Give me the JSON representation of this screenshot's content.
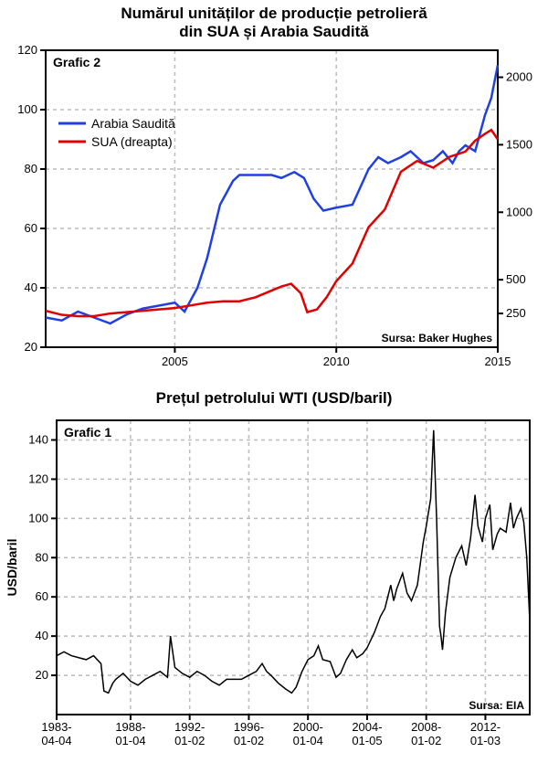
{
  "chart_top": {
    "type": "line",
    "title_line1": "Numărul unităților de producție petrolieră",
    "title_line2": "din SUA și Arabia Saudită",
    "title_fontsize": 17,
    "box_label": "Grafic 2",
    "legend": {
      "series1": {
        "label": "Arabia Saudită",
        "color": "#2040e0"
      },
      "series2": {
        "label": "SUA (dreapta)",
        "color": "#e00000"
      }
    },
    "source_label": "Sursa: Baker Hughes",
    "background_color": "#ffffff",
    "axis_color": "#000000",
    "grid_color": "#bbbbbb",
    "x": {
      "min": 2001,
      "max": 2015,
      "ticks": [
        2005,
        2010,
        2015
      ]
    },
    "y_left": {
      "min": 20,
      "max": 120,
      "ticks": [
        20,
        40,
        60,
        80,
        100,
        120
      ]
    },
    "y_right": {
      "min": 0,
      "max": 2200,
      "ticks": [
        250,
        500,
        1000,
        1500,
        2000
      ]
    },
    "line_width": 2.5,
    "series1_data": [
      [
        2001.0,
        30
      ],
      [
        2001.5,
        29
      ],
      [
        2002.0,
        32
      ],
      [
        2002.5,
        30
      ],
      [
        2003.0,
        28
      ],
      [
        2003.5,
        31
      ],
      [
        2004.0,
        33
      ],
      [
        2004.5,
        34
      ],
      [
        2005.0,
        35
      ],
      [
        2005.3,
        32
      ],
      [
        2005.7,
        40
      ],
      [
        2006.0,
        50
      ],
      [
        2006.4,
        68
      ],
      [
        2006.8,
        76
      ],
      [
        2007.0,
        78
      ],
      [
        2007.5,
        78
      ],
      [
        2008.0,
        78
      ],
      [
        2008.3,
        77
      ],
      [
        2008.7,
        79
      ],
      [
        2009.0,
        77
      ],
      [
        2009.3,
        70
      ],
      [
        2009.6,
        66
      ],
      [
        2010.0,
        67
      ],
      [
        2010.5,
        68
      ],
      [
        2011.0,
        80
      ],
      [
        2011.3,
        84
      ],
      [
        2011.6,
        82
      ],
      [
        2012.0,
        84
      ],
      [
        2012.3,
        86
      ],
      [
        2012.7,
        82
      ],
      [
        2013.0,
        83
      ],
      [
        2013.3,
        86
      ],
      [
        2013.6,
        82
      ],
      [
        2013.8,
        86
      ],
      [
        2014.0,
        88
      ],
      [
        2014.3,
        86
      ],
      [
        2014.6,
        98
      ],
      [
        2014.8,
        104
      ],
      [
        2015.0,
        115
      ]
    ],
    "series2_data": [
      [
        2001.0,
        270
      ],
      [
        2001.5,
        240
      ],
      [
        2002.0,
        230
      ],
      [
        2002.5,
        230
      ],
      [
        2003.0,
        250
      ],
      [
        2003.5,
        260
      ],
      [
        2004.0,
        270
      ],
      [
        2004.5,
        280
      ],
      [
        2005.0,
        290
      ],
      [
        2005.5,
        310
      ],
      [
        2006.0,
        330
      ],
      [
        2006.5,
        340
      ],
      [
        2007.0,
        340
      ],
      [
        2007.5,
        370
      ],
      [
        2008.0,
        420
      ],
      [
        2008.3,
        450
      ],
      [
        2008.6,
        470
      ],
      [
        2008.9,
        400
      ],
      [
        2009.1,
        260
      ],
      [
        2009.4,
        280
      ],
      [
        2009.7,
        370
      ],
      [
        2010.0,
        490
      ],
      [
        2010.5,
        620
      ],
      [
        2011.0,
        890
      ],
      [
        2011.5,
        1020
      ],
      [
        2012.0,
        1300
      ],
      [
        2012.5,
        1380
      ],
      [
        2013.0,
        1330
      ],
      [
        2013.5,
        1410
      ],
      [
        2014.0,
        1450
      ],
      [
        2014.3,
        1530
      ],
      [
        2014.6,
        1580
      ],
      [
        2014.8,
        1610
      ],
      [
        2015.0,
        1540
      ]
    ]
  },
  "chart_bottom": {
    "type": "line",
    "title": "Prețul petrolului WTI (USD/baril)",
    "title_fontsize": 17,
    "box_label": "Grafic 1",
    "ylabel": "USD/baril",
    "source_label": "Sursa: EIA",
    "background_color": "#ffffff",
    "axis_color": "#000000",
    "grid_color": "#bbbbbb",
    "line_color": "#000000",
    "line_width": 1.5,
    "x": {
      "min": 1983,
      "max": 2015,
      "ticks": [
        {
          "val": 1983,
          "lab1": "1983-",
          "lab2": "04-04"
        },
        {
          "val": 1988,
          "lab1": "1988-",
          "lab2": "01-04"
        },
        {
          "val": 1992,
          "lab1": "1992-",
          "lab2": "01-02"
        },
        {
          "val": 1996,
          "lab1": "1996-",
          "lab2": "01-02"
        },
        {
          "val": 2000,
          "lab1": "2000-",
          "lab2": "01-04"
        },
        {
          "val": 2004,
          "lab1": "2004-",
          "lab2": "01-05"
        },
        {
          "val": 2008,
          "lab1": "2008-",
          "lab2": "01-02"
        },
        {
          "val": 2012,
          "lab1": "2012-",
          "lab2": "01-03"
        }
      ]
    },
    "y": {
      "min": 0,
      "max": 150,
      "ticks": [
        20,
        40,
        60,
        80,
        100,
        120,
        140
      ]
    },
    "series_data": [
      [
        1983.0,
        30
      ],
      [
        1983.5,
        32
      ],
      [
        1984.0,
        30
      ],
      [
        1984.5,
        29
      ],
      [
        1985.0,
        28
      ],
      [
        1985.5,
        30
      ],
      [
        1986.0,
        26
      ],
      [
        1986.2,
        12
      ],
      [
        1986.5,
        11
      ],
      [
        1986.8,
        16
      ],
      [
        1987.0,
        18
      ],
      [
        1987.5,
        21
      ],
      [
        1988.0,
        17
      ],
      [
        1988.5,
        15
      ],
      [
        1989.0,
        18
      ],
      [
        1989.5,
        20
      ],
      [
        1990.0,
        22
      ],
      [
        1990.5,
        19
      ],
      [
        1990.7,
        40
      ],
      [
        1991.0,
        24
      ],
      [
        1991.5,
        21
      ],
      [
        1992.0,
        19
      ],
      [
        1992.5,
        22
      ],
      [
        1993.0,
        20
      ],
      [
        1993.5,
        17
      ],
      [
        1994.0,
        15
      ],
      [
        1994.5,
        18
      ],
      [
        1995.0,
        18
      ],
      [
        1995.5,
        18
      ],
      [
        1996.0,
        20
      ],
      [
        1996.5,
        22
      ],
      [
        1996.9,
        26
      ],
      [
        1997.2,
        22
      ],
      [
        1997.5,
        20
      ],
      [
        1998.0,
        16
      ],
      [
        1998.5,
        13
      ],
      [
        1998.9,
        11
      ],
      [
        1999.2,
        14
      ],
      [
        1999.6,
        22
      ],
      [
        2000.0,
        28
      ],
      [
        2000.4,
        30
      ],
      [
        2000.7,
        35
      ],
      [
        2001.0,
        28
      ],
      [
        2001.5,
        27
      ],
      [
        2001.9,
        19
      ],
      [
        2002.2,
        21
      ],
      [
        2002.6,
        28
      ],
      [
        2003.0,
        33
      ],
      [
        2003.3,
        29
      ],
      [
        2003.7,
        31
      ],
      [
        2004.0,
        34
      ],
      [
        2004.5,
        42
      ],
      [
        2004.9,
        50
      ],
      [
        2005.2,
        54
      ],
      [
        2005.6,
        66
      ],
      [
        2005.8,
        58
      ],
      [
        2006.0,
        64
      ],
      [
        2006.4,
        72
      ],
      [
        2006.7,
        62
      ],
      [
        2007.0,
        58
      ],
      [
        2007.4,
        66
      ],
      [
        2007.8,
        88
      ],
      [
        2008.0,
        96
      ],
      [
        2008.3,
        110
      ],
      [
        2008.5,
        145
      ],
      [
        2008.7,
        100
      ],
      [
        2008.9,
        45
      ],
      [
        2009.0,
        40
      ],
      [
        2009.1,
        33
      ],
      [
        2009.3,
        52
      ],
      [
        2009.6,
        70
      ],
      [
        2010.0,
        80
      ],
      [
        2010.4,
        86
      ],
      [
        2010.7,
        76
      ],
      [
        2011.0,
        90
      ],
      [
        2011.3,
        112
      ],
      [
        2011.5,
        96
      ],
      [
        2011.8,
        88
      ],
      [
        2012.0,
        100
      ],
      [
        2012.3,
        107
      ],
      [
        2012.5,
        84
      ],
      [
        2012.8,
        92
      ],
      [
        2013.0,
        95
      ],
      [
        2013.4,
        93
      ],
      [
        2013.7,
        108
      ],
      [
        2013.9,
        95
      ],
      [
        2014.1,
        100
      ],
      [
        2014.4,
        105
      ],
      [
        2014.6,
        98
      ],
      [
        2014.8,
        80
      ],
      [
        2015.0,
        48
      ]
    ]
  }
}
